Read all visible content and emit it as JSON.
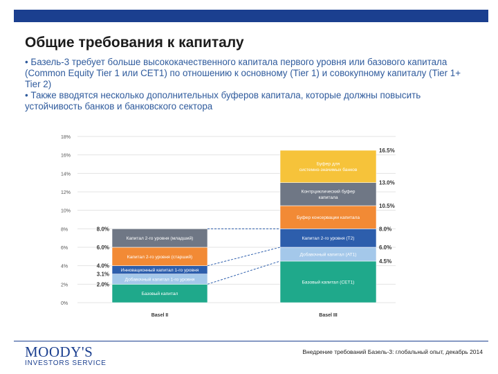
{
  "header": {
    "title": "Общие требования к капиталу",
    "bullet1": "• Базель-3 требует больше высококачественного капитала первого уровня или базового капитала (Common Equity Tier 1 или CET1) по отношению к основному (Tier 1) и совокупному капиталу (Tier 1+ Tier 2)",
    "bullet2": "• Также вводятся несколько дополнительных буферов капитала, которые должны повысить устойчивость банков и банковского сектора"
  },
  "footer": {
    "logo_line1": "MOODY'S",
    "logo_line2": "INVESTORS SERVICE",
    "note": "Внедрение требований Базель-3: глобальный опыт, декабрь 2014"
  },
  "colors": {
    "brand": "#1b3f8f",
    "bullet_text": "#2e5a9c",
    "teal": "#1fa98b",
    "light_blue": "#a4c8ea",
    "blue": "#2d5eac",
    "orange": "#f28a35",
    "gray": "#6f7785",
    "yellow": "#f6c33a",
    "connector": "#2d5eac"
  },
  "chart_data": {
    "type": "bar",
    "stacked": true,
    "categories": [
      "Basel II",
      "Basel III"
    ],
    "ylim": [
      0,
      18
    ],
    "yticks": [
      "0%",
      "2%",
      "4%",
      "6%",
      "8%",
      "10%",
      "12%",
      "14%",
      "16%",
      "18%"
    ],
    "grid": true,
    "bars": [
      {
        "category": "Basel II",
        "segments": [
          {
            "label": "Базовый капитал",
            "from": 0,
            "to": 2.0,
            "color": "#1fa98b"
          },
          {
            "label": "Добавочный капитал 1-го уровня",
            "from": 2.0,
            "to": 3.1,
            "color": "#a4c8ea"
          },
          {
            "label": "Инновационный капитал 1-го уровня",
            "from": 3.1,
            "to": 4.0,
            "color": "#2d5eac"
          },
          {
            "label": "Капитал 2-го уровня (старший)",
            "from": 4.0,
            "to": 6.0,
            "color": "#f28a35"
          },
          {
            "label": "Капитал 2-го уровня (младший)",
            "from": 6.0,
            "to": 8.0,
            "color": "#6f7785"
          }
        ],
        "value_labels": [
          "2.0%",
          "3.1%",
          "4.0%",
          "6.0%",
          "8.0%"
        ],
        "value_label_positions": [
          2.0,
          3.1,
          4.0,
          6.0,
          8.0
        ]
      },
      {
        "category": "Basel III",
        "segments": [
          {
            "label": "Базовый капитал (CET1)",
            "from": 0,
            "to": 4.5,
            "color": "#1fa98b"
          },
          {
            "label": "Добавочный капитал (AT1)",
            "from": 4.5,
            "to": 6.0,
            "color": "#a4c8ea"
          },
          {
            "label": "Капитал 2-го уровня (T2)",
            "from": 6.0,
            "to": 8.0,
            "color": "#2d5eac"
          },
          {
            "label": "Буфер консервации капитала",
            "from": 8.0,
            "to": 10.5,
            "color": "#f28a35"
          },
          {
            "label": "Контрциклический буфер капитала",
            "from": 10.5,
            "to": 13.0,
            "color": "#6f7785"
          },
          {
            "label": "Буфер для системно-значимых банков",
            "from": 13.0,
            "to": 16.5,
            "color": "#f6c33a"
          }
        ],
        "value_labels": [
          "4.5%",
          "6.0%",
          "8.0%",
          "10.5%",
          "13.0%",
          "16.5%"
        ],
        "value_label_positions": [
          4.5,
          6.0,
          8.0,
          10.5,
          13.0,
          16.5
        ]
      }
    ],
    "connectors": [
      {
        "from": 2.0,
        "to": 4.5
      },
      {
        "from": 4.0,
        "to": 6.0
      },
      {
        "from": 8.0,
        "to": 8.0
      }
    ]
  }
}
